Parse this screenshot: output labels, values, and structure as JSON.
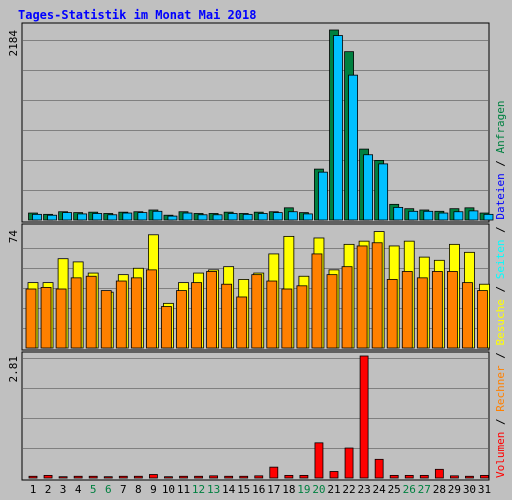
{
  "title": "Tages-Statistik im Monat Mai 2018",
  "legend": {
    "volumen": "Volumen",
    "rechner": "Rechner",
    "besuche": "Besuche",
    "seiten": "Seiten",
    "dateien": "Dateien",
    "anfragen": "Anfragen",
    "separator": " / "
  },
  "colors": {
    "anfragen": "#008040",
    "dateien": "#00c0ff",
    "besuche": "#ffff00",
    "rechner": "#ff8000",
    "volumen": "#ff0000",
    "weekend_label": "#008040",
    "weekday_label": "#000000",
    "background": "#c0c0c0",
    "title": "#0000ff"
  },
  "chart_data": [
    {
      "type": "bar",
      "ytick_label": "2184",
      "ylim": [
        0,
        2184
      ],
      "categories": [
        "1",
        "2",
        "3",
        "4",
        "5",
        "6",
        "7",
        "8",
        "9",
        "10",
        "11",
        "12",
        "13",
        "14",
        "15",
        "16",
        "17",
        "18",
        "19",
        "20",
        "21",
        "22",
        "23",
        "24",
        "25",
        "26",
        "27",
        "28",
        "29",
        "30",
        "31"
      ],
      "weekend_days": [
        "5",
        "6",
        "12",
        "13",
        "19",
        "20",
        "26",
        "27"
      ],
      "series": [
        {
          "name": "Anfragen",
          "values": [
            80,
            65,
            95,
            85,
            90,
            75,
            90,
            95,
            115,
            55,
            95,
            75,
            75,
            90,
            75,
            90,
            95,
            140,
            85,
            585,
            2184,
            1935,
            815,
            685,
            180,
            130,
            115,
            100,
            130,
            140,
            80
          ]
        },
        {
          "name": "Dateien",
          "values": [
            65,
            55,
            85,
            70,
            75,
            60,
            80,
            85,
            100,
            45,
            80,
            60,
            60,
            75,
            65,
            75,
            85,
            95,
            70,
            550,
            2120,
            1665,
            750,
            645,
            145,
            100,
            100,
            80,
            95,
            105,
            65
          ]
        }
      ]
    },
    {
      "type": "bar",
      "ytick_label": "74",
      "ylim": [
        0,
        74
      ],
      "categories": [
        "1",
        "2",
        "3",
        "4",
        "5",
        "6",
        "7",
        "8",
        "9",
        "10",
        "11",
        "12",
        "13",
        "14",
        "15",
        "16",
        "17",
        "18",
        "19",
        "20",
        "21",
        "22",
        "23",
        "24",
        "25",
        "26",
        "27",
        "28",
        "29",
        "30",
        "31"
      ],
      "series": [
        {
          "name": "Besuche",
          "values": [
            41,
            41,
            56,
            54,
            47,
            35,
            46,
            50,
            71,
            28,
            41,
            47,
            49,
            51,
            43,
            47,
            59,
            70,
            45,
            69,
            49,
            65,
            67,
            73,
            64,
            67,
            57,
            55,
            65,
            60,
            40
          ]
        },
        {
          "name": "Rechner",
          "values": [
            37,
            38,
            37,
            44,
            45,
            36,
            42,
            44,
            49,
            26,
            36,
            41,
            48,
            40,
            32,
            46,
            42,
            37,
            39,
            59,
            46,
            51,
            64,
            66,
            43,
            48,
            44,
            48,
            48,
            41,
            36
          ]
        }
      ]
    },
    {
      "type": "bar",
      "ytick_label": "2.81",
      "ylim": [
        0,
        2.81
      ],
      "categories": [
        "1",
        "2",
        "3",
        "4",
        "5",
        "6",
        "7",
        "8",
        "9",
        "10",
        "11",
        "12",
        "13",
        "14",
        "15",
        "16",
        "17",
        "18",
        "19",
        "20",
        "21",
        "22",
        "23",
        "24",
        "25",
        "26",
        "27",
        "28",
        "29",
        "30",
        "31"
      ],
      "series": [
        {
          "name": "Volumen",
          "values": [
            0.04,
            0.06,
            0.03,
            0.04,
            0.04,
            0.03,
            0.04,
            0.04,
            0.08,
            0.03,
            0.04,
            0.04,
            0.05,
            0.04,
            0.04,
            0.05,
            0.25,
            0.06,
            0.06,
            0.81,
            0.15,
            0.69,
            2.81,
            0.43,
            0.06,
            0.06,
            0.06,
            0.2,
            0.05,
            0.04,
            0.06
          ]
        }
      ]
    }
  ]
}
